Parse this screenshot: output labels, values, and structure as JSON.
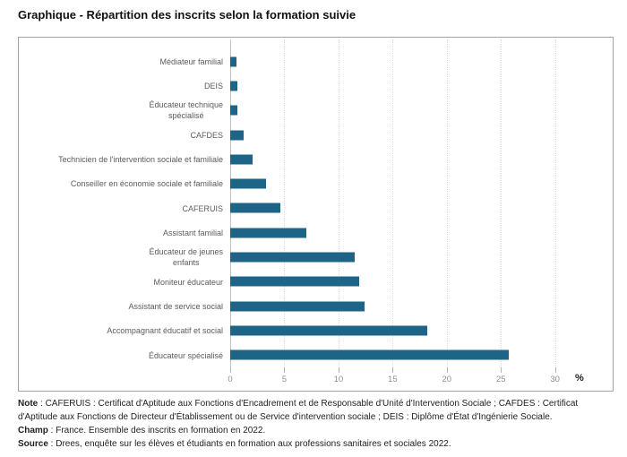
{
  "page_title": "Graphique - Répartition des inscrits selon la formation suivie",
  "chart_data": {
    "type": "bar",
    "orientation": "horizontal",
    "title": "Graphique - Répartition des inscrits selon la formation suivie",
    "categories": [
      "Médiateur familial",
      "DEIS",
      "Éducateur technique\nspécialisé",
      "CAFDES",
      "Technicien de l'intervention sociale et familiale",
      "Conseiller en économie sociale et familiale",
      "CAFERUIS",
      "Assistant familial",
      "Éducateur de jeunes\nenfants",
      "Moniteur éducateur",
      "Assistant de service social",
      "Accompagnant éducatif et social",
      "Éducateur spécialisé"
    ],
    "values": [
      0.6,
      0.7,
      0.7,
      1.2,
      2.1,
      3.3,
      4.6,
      7.0,
      11.5,
      11.9,
      12.4,
      18.2,
      25.7
    ],
    "unit": "%",
    "xlabel": "%",
    "xlim": [
      0,
      30
    ],
    "xticks": [
      0,
      5,
      10,
      15,
      20,
      25,
      30
    ],
    "bar_color": "#1e6486",
    "grid": "vertical-dotted",
    "legend": "none"
  },
  "footer": {
    "note_label": "Note",
    "note_text": " : CAFERUIS : Certificat d'Aptitude aux Fonctions d'Encadrement et de Responsable d'Unité d'Intervention Sociale ; CAFDES : Certificat d'Aptitude aux Fonctions de Directeur d'Établissement ou de Service d'intervention sociale ; DEIS : Diplôme d'État d'Ingénierie Sociale.",
    "champ_label": "Champ",
    "champ_text": " : France. Ensemble des inscrits en formation en 2022.",
    "source_label": "Source",
    "source_text": " : Drees, enquête sur les élèves et étudiants en formation aux professions sanitaires et sociales 2022."
  }
}
